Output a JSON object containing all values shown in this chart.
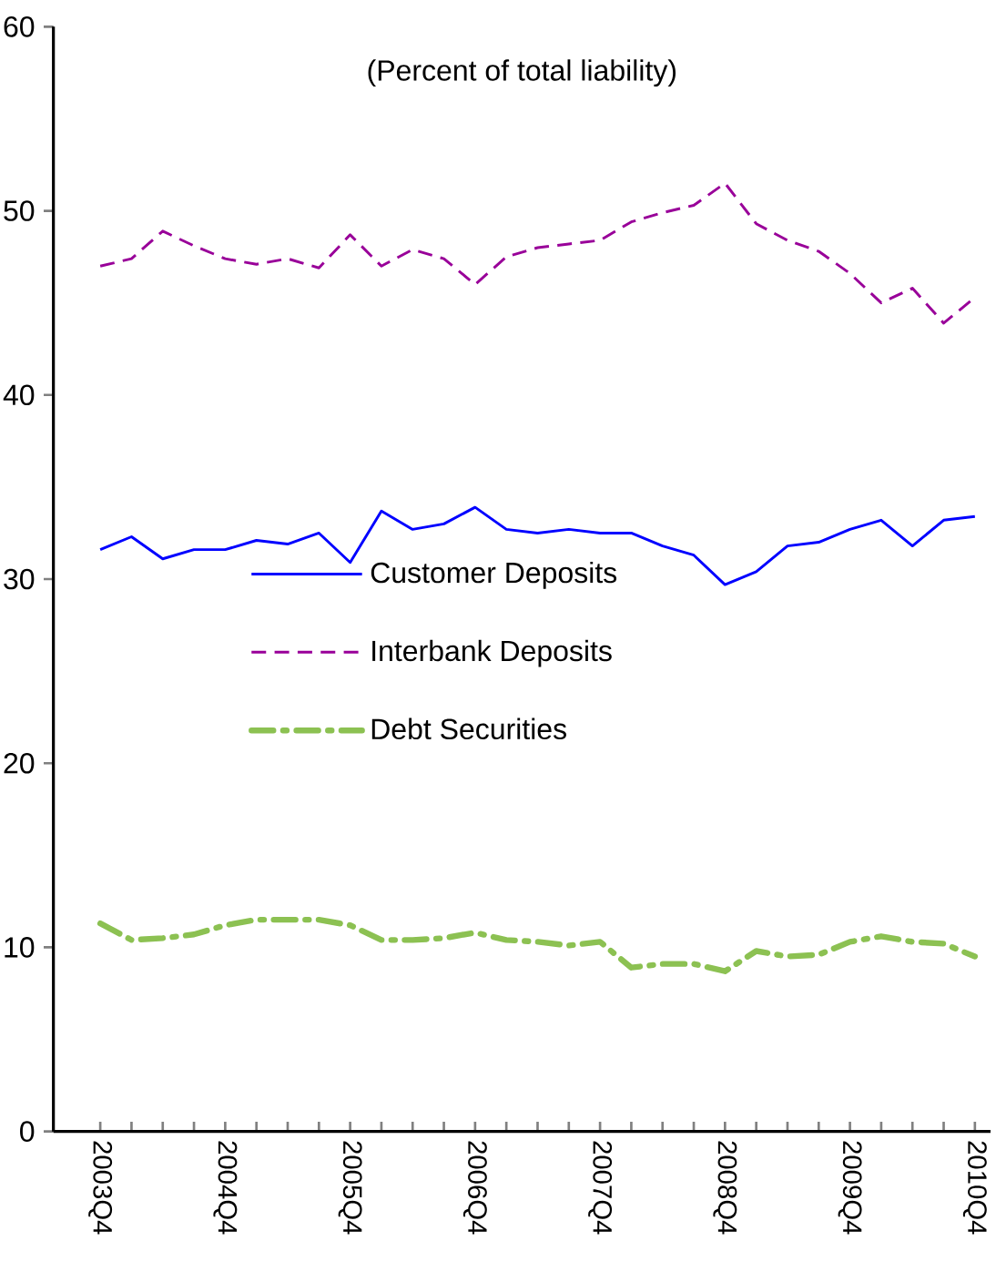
{
  "chart_data": {
    "type": "line",
    "title": "(Percent of total liability)",
    "categories": [
      "2003Q4",
      null,
      null,
      null,
      "2004Q4",
      null,
      null,
      null,
      "2005Q4",
      null,
      null,
      null,
      "2006Q4",
      null,
      null,
      null,
      "2007Q4",
      null,
      null,
      null,
      "2008Q4",
      null,
      null,
      null,
      "2009Q4",
      null,
      null,
      null,
      "2010Q4"
    ],
    "series": [
      {
        "name": "Customer Deposits",
        "color": "#0000ff",
        "line_style": "solid",
        "values": [
          31.6,
          32.3,
          31.1,
          31.6,
          31.6,
          32.1,
          31.9,
          32.5,
          30.9,
          33.7,
          32.7,
          33.0,
          33.9,
          32.7,
          32.5,
          32.7,
          32.5,
          32.5,
          31.8,
          31.3,
          29.7,
          30.4,
          31.8,
          32.0,
          32.7,
          33.2,
          31.8,
          33.2,
          33.4
        ]
      },
      {
        "name": "Interbank Deposits",
        "color": "#990099",
        "line_style": "dashed",
        "values": [
          47.0,
          47.4,
          48.9,
          48.1,
          47.4,
          47.1,
          47.4,
          46.9,
          48.7,
          47.0,
          47.9,
          47.4,
          46.0,
          47.5,
          48.0,
          48.2,
          48.4,
          49.4,
          49.9,
          50.3,
          51.5,
          49.3,
          48.4,
          47.8,
          46.6,
          45.0,
          45.8,
          43.9,
          45.3
        ]
      },
      {
        "name": "Debt Securities",
        "color": "#8cc152",
        "line_style": "dashdot",
        "values": [
          11.3,
          10.4,
          10.5,
          10.7,
          11.2,
          11.5,
          11.5,
          11.5,
          11.2,
          10.4,
          10.4,
          10.5,
          10.8,
          10.4,
          10.3,
          10.1,
          10.3,
          8.9,
          9.1,
          9.1,
          8.7,
          9.8,
          9.5,
          9.6,
          10.3,
          10.6,
          10.3,
          10.2,
          9.5
        ]
      }
    ],
    "ylim": [
      0,
      60
    ],
    "yticks": [
      0,
      10,
      20,
      30,
      40,
      50,
      60
    ],
    "grid": false,
    "legend": "center",
    "marker": "none"
  }
}
